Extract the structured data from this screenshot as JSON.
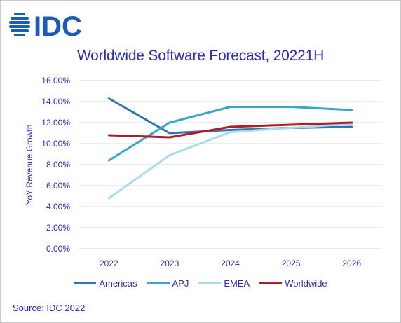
{
  "brand": {
    "logo_text": "IDC",
    "logo_color": "#1a5cb8"
  },
  "title": "Worldwide Software Forecast, 20221H",
  "source": "Source: IDC 2022",
  "chart_data": {
    "type": "line",
    "title": "Worldwide Software Forecast, 20221H",
    "xlabel": "",
    "ylabel": "YoY Revenue Growth",
    "x": [
      "2022",
      "2023",
      "2024",
      "2025",
      "2026"
    ],
    "ylim": [
      0,
      16
    ],
    "yticks": [
      "0.00%",
      "2.00%",
      "4.00%",
      "6.00%",
      "8.00%",
      "10.00%",
      "12.00%",
      "14.00%",
      "16.00%"
    ],
    "grid": true,
    "legend_position": "bottom",
    "series": [
      {
        "name": "Americas",
        "color": "#2e75b6",
        "values": [
          14.3,
          11.0,
          11.3,
          11.5,
          11.6
        ]
      },
      {
        "name": "APJ",
        "color": "#36a8c4",
        "values": [
          8.4,
          12.0,
          13.5,
          13.5,
          13.2
        ]
      },
      {
        "name": "EMEA",
        "color": "#a9dce8",
        "values": [
          4.8,
          8.9,
          11.1,
          11.5,
          11.9
        ]
      },
      {
        "name": "Worldwide",
        "color": "#b01e23",
        "values": [
          10.8,
          10.6,
          11.6,
          11.8,
          12.0
        ]
      }
    ]
  }
}
